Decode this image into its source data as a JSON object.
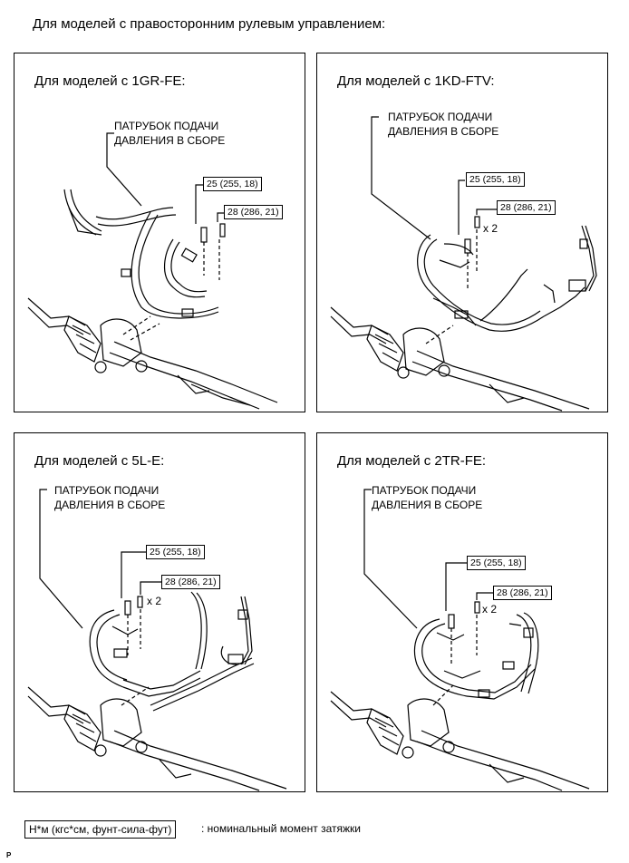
{
  "heading": "Для моделей с правосторонним рулевым управлением:",
  "part_label_line1": "ПАТРУБОК ПОДАЧИ",
  "part_label_line2": "ДАВЛЕНИЯ В СБОРЕ",
  "panels": [
    {
      "title": "Для моделей с 1GR-FE:",
      "torque_top": "25 (255, 18)",
      "torque_bottom": "28 (286, 21)",
      "qty": ""
    },
    {
      "title": "Для моделей с 1KD-FTV:",
      "torque_top": "25 (255, 18)",
      "torque_bottom": "28 (286, 21)",
      "qty": "x 2"
    },
    {
      "title": "Для моделей с 5L-E:",
      "torque_top": "25 (255, 18)",
      "torque_bottom": "28 (286, 21)",
      "qty": "x 2"
    },
    {
      "title": "Для моделей с 2TR-FE:",
      "torque_top": "25 (255, 18)",
      "torque_bottom": "28 (286, 21)",
      "qty": "x 2"
    }
  ],
  "legend": {
    "box": "Н*м (кгс*см, фунт-сила-фут)",
    "text": ": номинальный момент затяжки"
  },
  "footer_mark": "P"
}
